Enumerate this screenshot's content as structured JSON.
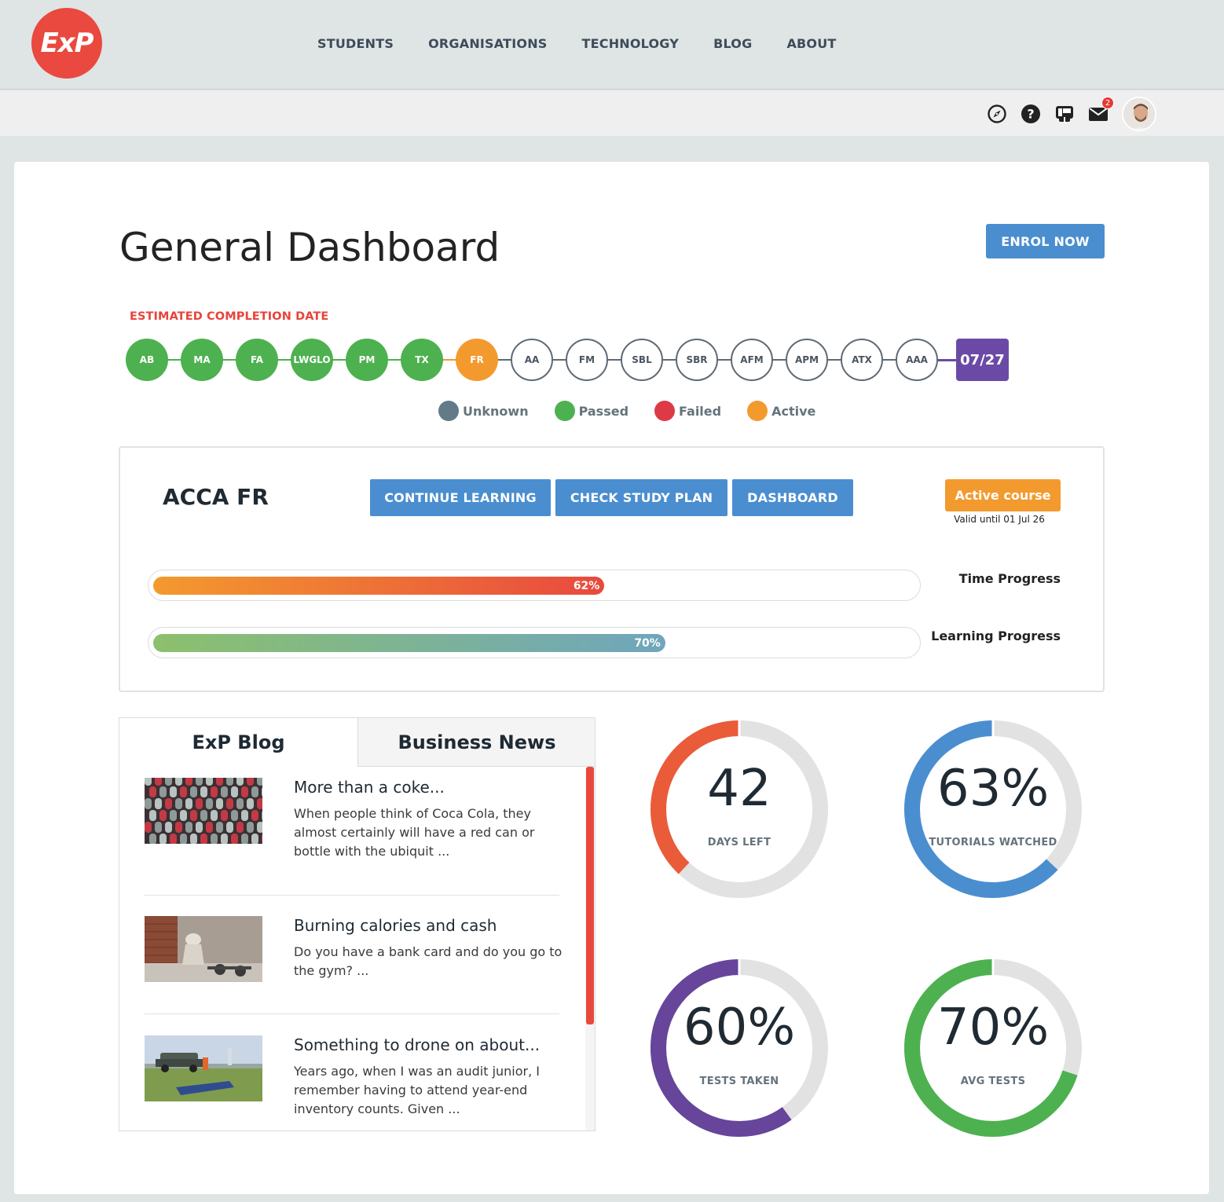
{
  "nav": {
    "logo_text": "ExP",
    "items": [
      "STUDENTS",
      "ORGANISATIONS",
      "TECHNOLOGY",
      "BLOG",
      "ABOUT"
    ]
  },
  "toolbar": {
    "icons": [
      "compass-icon",
      "help-icon",
      "gift-icon",
      "mail-icon"
    ],
    "mail_badge": "2"
  },
  "page": {
    "title": "General Dashboard",
    "enrol_label": "ENROL NOW"
  },
  "timeline": {
    "label": "ESTIMATED COMPLETION DATE",
    "nodes": [
      {
        "code": "AB",
        "status": "passed"
      },
      {
        "code": "MA",
        "status": "passed"
      },
      {
        "code": "FA",
        "status": "passed"
      },
      {
        "code": "LWGLO",
        "status": "passed"
      },
      {
        "code": "PM",
        "status": "passed"
      },
      {
        "code": "TX",
        "status": "passed"
      },
      {
        "code": "FR",
        "status": "active"
      },
      {
        "code": "AA",
        "status": "unknown"
      },
      {
        "code": "FM",
        "status": "unknown"
      },
      {
        "code": "SBL",
        "status": "unknown"
      },
      {
        "code": "SBR",
        "status": "unknown"
      },
      {
        "code": "AFM",
        "status": "unknown"
      },
      {
        "code": "APM",
        "status": "unknown"
      },
      {
        "code": "ATX",
        "status": "unknown"
      },
      {
        "code": "AAA",
        "status": "unknown"
      }
    ],
    "date": "07/27"
  },
  "legend": [
    {
      "label": "Unknown",
      "color": "#637a88"
    },
    {
      "label": "Passed",
      "color": "#4db150"
    },
    {
      "label": "Failed",
      "color": "#dd3a45"
    },
    {
      "label": "Active",
      "color": "#f39a2e"
    }
  ],
  "course": {
    "name": "ACCA FR",
    "buttons": [
      "CONTINUE LEARNING",
      "CHECK STUDY PLAN",
      "DASHBOARD"
    ],
    "status": "Active course",
    "valid_until": "Valid until 01 Jul 26",
    "time_progress": {
      "label": "Time Progress",
      "value": 62,
      "text": "62%"
    },
    "learning_progress": {
      "label": "Learning Progress",
      "value": 70,
      "text": "70%"
    }
  },
  "blog": {
    "tabs": [
      "ExP Blog",
      "Business News"
    ],
    "posts": [
      {
        "title": "More than a coke...",
        "excerpt": "When people think of Coca Cola, they almost certainly will have a red can or bottle with the ubiquit ..."
      },
      {
        "title": "Burning calories and cash",
        "excerpt": "Do you have a bank card and do you go to the gym? ..."
      },
      {
        "title": "Something to drone on about...",
        "excerpt": "Years ago, when I was an audit junior, I remember having to attend year-end inventory counts. Given ..."
      }
    ]
  },
  "stats": [
    {
      "value": "42",
      "label": "DAYS LEFT",
      "fraction": 0.38,
      "color": "#ea5b3a"
    },
    {
      "value": "63%",
      "label": "TUTORIALS WATCHED",
      "fraction": 0.63,
      "color": "#4a8ed0"
    },
    {
      "value": "60%",
      "label": "TESTS TAKEN",
      "fraction": 0.6,
      "color": "#66459b"
    },
    {
      "value": "70%",
      "label": "AVG TESTS",
      "fraction": 0.7,
      "color": "#4db150"
    }
  ]
}
